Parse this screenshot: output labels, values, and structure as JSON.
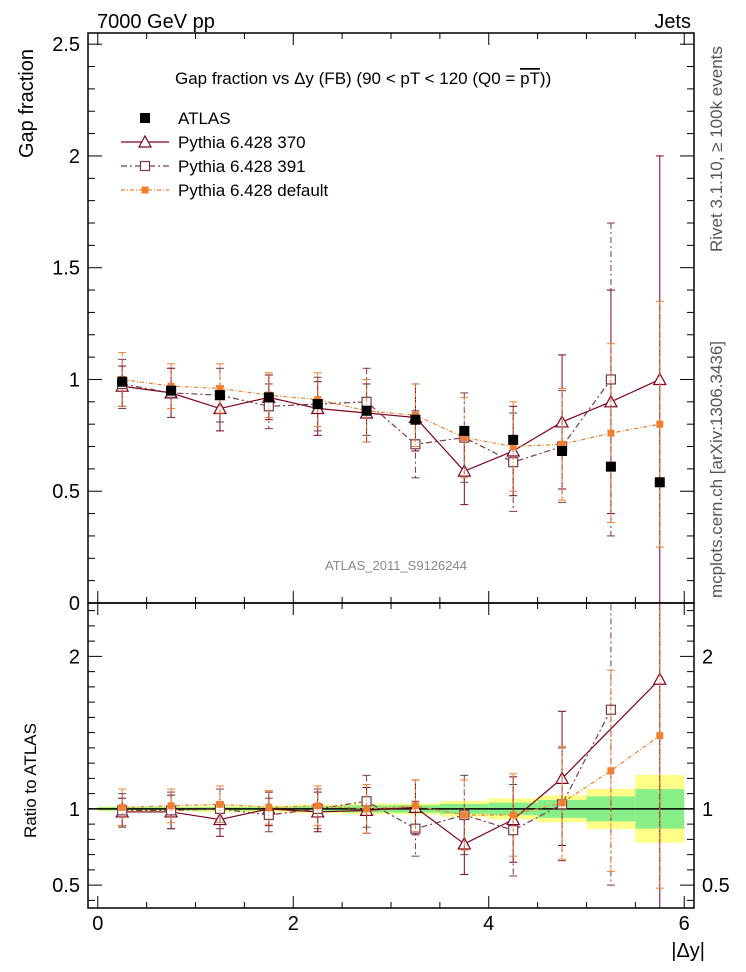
{
  "header": {
    "left": "7000 GeV pp",
    "right": "Jets",
    "side_top": "Rivet 3.1.10, ≥ 100k events",
    "side_bottom": "mcplots.cern.ch [arXiv:1306.3436]"
  },
  "chart_data": {
    "type": "line",
    "title_parts": [
      "Gap fraction vs ",
      "Δy",
      " (FB) (90 < pT < 120 (Q0 = ",
      "pT",
      "))"
    ],
    "ylabel": "Gap fraction",
    "ratio_ylabel": "Ratio to ATLAS",
    "xlabel": "|Δy|",
    "watermark": "ATLAS_2011_S9126244",
    "xlim": [
      -0.1,
      6.1
    ],
    "ylim": [
      0,
      2.55
    ],
    "ratio_ylim": [
      0.35,
      2.35
    ],
    "x_ticks": [
      0,
      2,
      4,
      6
    ],
    "x_tick_labels": [
      "0",
      "2",
      "4",
      "6"
    ],
    "y_ticks": [
      0,
      0.5,
      1,
      1.5,
      2,
      2.5
    ],
    "y_tick_labels": [
      "0",
      "0.5",
      "1",
      "1.5",
      "2",
      "2.5"
    ],
    "ratio_y_ticks": [
      0.5,
      1,
      2
    ],
    "ratio_y_tick_labels": [
      "0.5",
      "1",
      "2"
    ],
    "x": [
      0.25,
      0.75,
      1.25,
      1.75,
      2.25,
      2.75,
      3.25,
      3.75,
      4.25,
      4.75,
      5.25,
      5.75
    ],
    "x_bins": [
      0,
      0.5,
      1,
      1.5,
      2,
      2.5,
      3,
      3.5,
      4,
      4.5,
      5,
      5.5,
      6
    ],
    "series": [
      {
        "name": "ATLAS",
        "style": "data",
        "color": "#000000",
        "values": [
          0.99,
          0.95,
          0.93,
          0.92,
          0.89,
          0.86,
          0.82,
          0.77,
          0.73,
          0.68,
          0.61,
          0.54
        ],
        "band_inner": [
          0.01,
          0.01,
          0.01,
          0.01,
          0.015,
          0.02,
          0.02,
          0.025,
          0.03,
          0.04,
          0.05,
          0.07
        ],
        "band_outer": [
          0.015,
          0.015,
          0.02,
          0.02,
          0.025,
          0.03,
          0.03,
          0.04,
          0.05,
          0.06,
          0.08,
          0.12
        ]
      },
      {
        "name": "Pythia 6.428 370",
        "style": "triangle-solid",
        "color": "#800020",
        "values": [
          0.97,
          0.94,
          0.87,
          0.92,
          0.87,
          0.85,
          0.83,
          0.59,
          0.68,
          0.81,
          0.9,
          1.0
        ],
        "errors": [
          0.09,
          0.11,
          0.1,
          0.1,
          0.12,
          0.13,
          0.15,
          0.15,
          0.2,
          0.3,
          0.5,
          1.0
        ]
      },
      {
        "name": "Pythia 6.428 391",
        "style": "square-dashdot",
        "color": "#7a3a4a",
        "values": [
          0.98,
          0.94,
          0.93,
          0.88,
          0.89,
          0.9,
          0.71,
          0.74,
          0.63,
          0.7,
          1.0,
          null
        ],
        "errors": [
          0.11,
          0.11,
          0.12,
          0.1,
          0.12,
          0.15,
          0.15,
          0.2,
          0.22,
          0.25,
          0.7,
          null
        ]
      },
      {
        "name": "Pythia 6.428 default",
        "style": "filled-square-dashdot",
        "color": "#f08030",
        "values": [
          1.0,
          0.97,
          0.96,
          0.93,
          0.91,
          0.86,
          0.84,
          0.74,
          0.7,
          0.71,
          0.76,
          0.8
        ],
        "errors": [
          0.12,
          0.1,
          0.11,
          0.1,
          0.12,
          0.14,
          0.14,
          0.18,
          0.2,
          0.25,
          0.4,
          0.55
        ]
      }
    ],
    "ratio": {
      "Pythia 6.428 370": {
        "values": [
          0.98,
          0.98,
          0.93,
          1.0,
          0.98,
          0.99,
          1.01,
          0.77,
          0.93,
          1.2,
          null,
          1.85
        ],
        "errors": [
          0.09,
          0.11,
          0.11,
          0.11,
          0.13,
          0.15,
          0.18,
          0.2,
          0.28,
          0.44,
          null,
          1.5
        ]
      },
      "Pythia 6.428 391": {
        "values": [
          0.99,
          0.99,
          1.0,
          0.96,
          1.0,
          1.05,
          0.87,
          0.96,
          0.86,
          1.03,
          1.65,
          null
        ],
        "errors": [
          0.11,
          0.12,
          0.13,
          0.11,
          0.13,
          0.17,
          0.18,
          0.26,
          0.3,
          0.37,
          1.15,
          null
        ]
      },
      "Pythia 6.428 default": {
        "values": [
          1.01,
          1.02,
          1.03,
          1.01,
          1.02,
          1.0,
          1.02,
          0.96,
          0.96,
          1.04,
          1.25,
          1.48
        ],
        "errors": [
          0.12,
          0.11,
          0.12,
          0.11,
          0.13,
          0.16,
          0.17,
          0.23,
          0.27,
          0.37,
          0.66,
          1.0
        ]
      }
    },
    "legend_position": "top-left"
  }
}
